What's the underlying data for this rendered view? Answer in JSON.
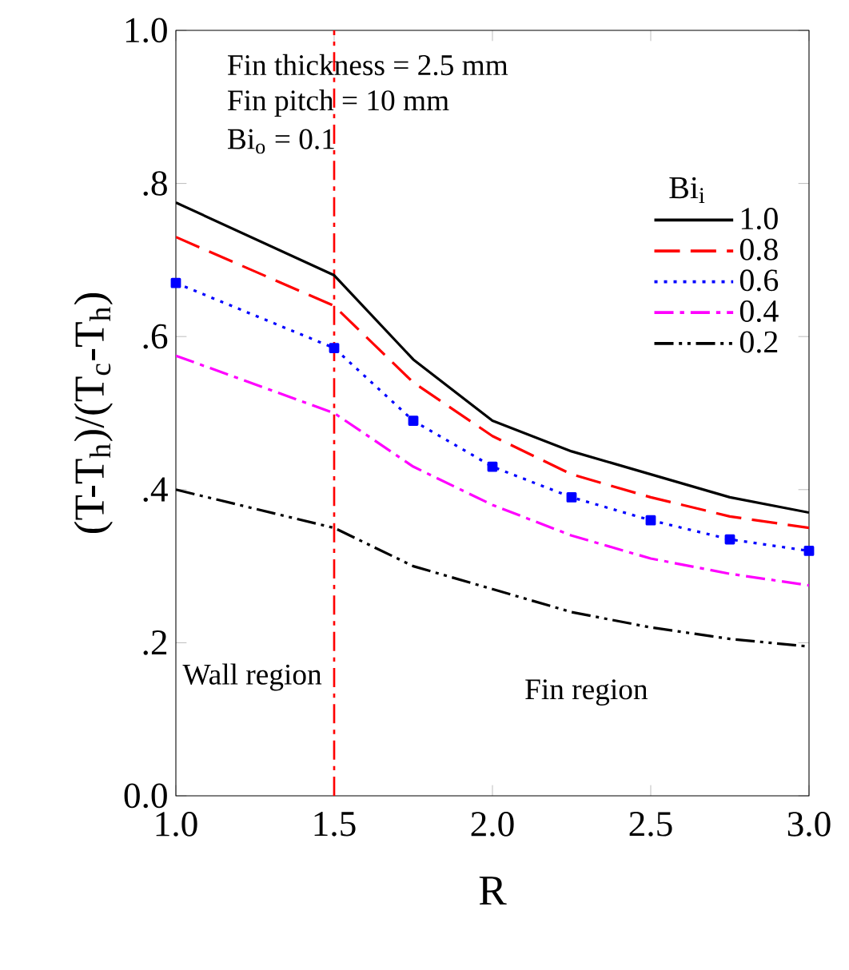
{
  "chart_data": {
    "type": "line",
    "xlabel": "R",
    "ylabel": "(T-T$_{h}$)/(T$_{c}$-T$_{h}$)",
    "legend_title": "Bi$_{i}$",
    "legend": "top right",
    "grid": false,
    "x": [
      1.0,
      1.5,
      1.75,
      2.0,
      2.25,
      2.5,
      2.75,
      3.0
    ],
    "series": [
      {
        "name": "1.0",
        "color": "#000000",
        "line_style": "solid",
        "marker": "none",
        "values": [
          0.775,
          0.68,
          0.57,
          0.49,
          0.45,
          0.42,
          0.39,
          0.37
        ]
      },
      {
        "name": "0.8",
        "color": "#ff0000",
        "line_style": "dashed",
        "marker": "none",
        "values": [
          0.73,
          0.64,
          0.54,
          0.47,
          0.42,
          0.39,
          0.365,
          0.35
        ]
      },
      {
        "name": "0.6",
        "color": "#0000ff",
        "line_style": "dotted",
        "marker": "square",
        "values": [
          0.67,
          0.585,
          0.49,
          0.43,
          0.39,
          0.36,
          0.335,
          0.32
        ]
      },
      {
        "name": "0.4",
        "color": "#ff00ff",
        "line_style": "dashdot",
        "marker": "none",
        "values": [
          0.575,
          0.5,
          0.43,
          0.38,
          0.34,
          0.31,
          0.29,
          0.275
        ]
      },
      {
        "name": "0.2",
        "color": "#000000",
        "line_style": "dashdotdot",
        "marker": "none",
        "values": [
          0.4,
          0.35,
          0.3,
          0.27,
          0.24,
          0.22,
          0.205,
          0.195
        ]
      }
    ],
    "xlim": [
      1,
      3
    ],
    "ylim": [
      0,
      1
    ],
    "xticks": [
      {
        "value": 1,
        "label": "1.0"
      },
      {
        "value": 1.5,
        "label": "1.5"
      },
      {
        "value": 2,
        "label": "2.0"
      },
      {
        "value": 2.5,
        "label": "2.5"
      },
      {
        "value": 3,
        "label": "3.0"
      }
    ],
    "yticks": [
      {
        "value": 0,
        "label": "0.0"
      },
      {
        "value": 0.2,
        "label": ".2"
      },
      {
        "value": 0.4,
        "label": ".4"
      },
      {
        "value": 0.6,
        "label": ".6"
      },
      {
        "value": 0.8,
        "label": ".8"
      },
      {
        "value": 1,
        "label": "1.0"
      }
    ],
    "ref_lines": [
      {
        "axis": "x",
        "value": 1.5,
        "color": "#ff0000",
        "line_style": "dashdot"
      }
    ],
    "annotations": [
      "Fin thickness = 2.5 mm",
      "Fin pitch = 10 mm",
      "Bi$_{o}$ = 0.1",
      "Wall region",
      "Fin region"
    ]
  }
}
